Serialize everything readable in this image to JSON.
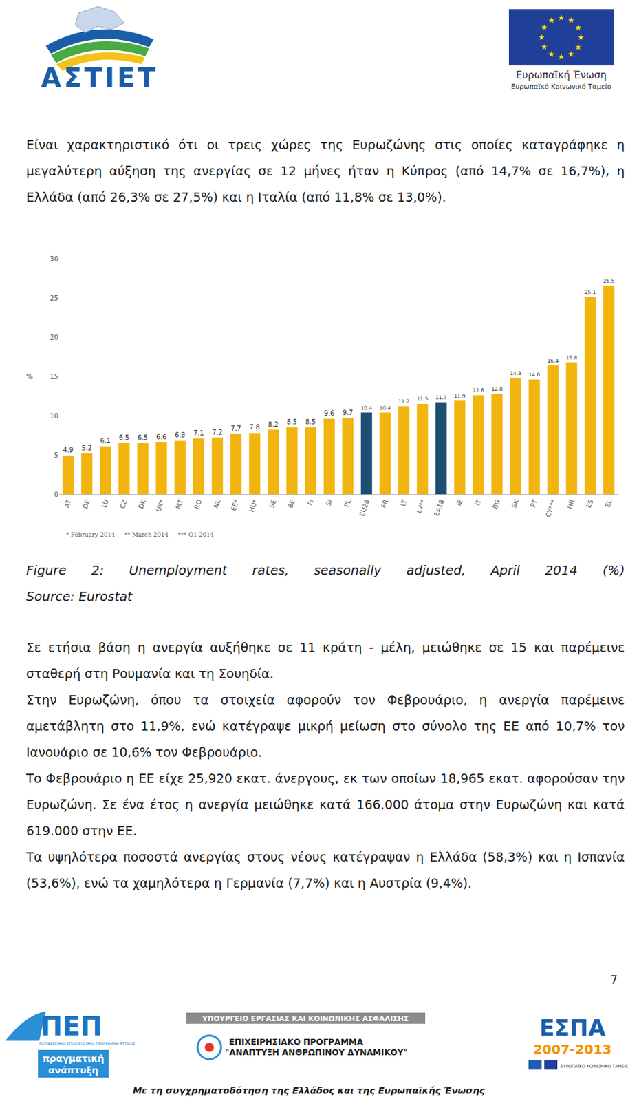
{
  "header": {
    "logo_left": "ΑΣΤΙΕΤ",
    "logo_right": [
      "Ευρωπαϊκή Ένωση",
      "Ευρωπαϊκό Κοινωνικό Ταμείο"
    ]
  },
  "paragraphs_top": [
    "Είναι χαρακτηριστικό ότι οι τρεις χώρες της Ευρωζώνης στις οποίες καταγράφηκε η μεγαλύτερη αύξηση της ανεργίας σε 12 μήνες ήταν η Κύπρος (από 14,7% σε 16,7%), η Ελλάδα (από 26,3% σε 27,5%) και η Ιταλία (από 11,8% σε 13,0%)."
  ],
  "chart_data": {
    "type": "bar",
    "ylabel": "%",
    "categories": [
      "AT",
      "DE",
      "LU",
      "CZ",
      "DK",
      "UK*",
      "MT",
      "RO",
      "NL",
      "EE*",
      "HU*",
      "SE",
      "BE",
      "FI",
      "SI",
      "PL",
      "EU28",
      "FR",
      "LT",
      "LV**",
      "EA18",
      "IE",
      "IT",
      "BG",
      "SK",
      "PT",
      "CY***",
      "HR",
      "ES",
      "EL"
    ],
    "values": [
      4.9,
      5.2,
      6.1,
      6.5,
      6.5,
      6.6,
      6.8,
      7.1,
      7.2,
      7.7,
      7.8,
      8.2,
      8.5,
      8.5,
      9.6,
      9.7,
      10.4,
      10.4,
      11.2,
      11.5,
      11.7,
      11.9,
      12.6,
      12.8,
      14.8,
      14.6,
      16.4,
      16.8,
      25.1,
      26.5
    ],
    "colors": [
      "#f2b50f",
      "#f2b50f",
      "#f2b50f",
      "#f2b50f",
      "#f2b50f",
      "#f2b50f",
      "#f2b50f",
      "#f2b50f",
      "#f2b50f",
      "#f2b50f",
      "#f2b50f",
      "#f2b50f",
      "#f2b50f",
      "#f2b50f",
      "#f2b50f",
      "#f2b50f",
      "#1d4f73",
      "#f2b50f",
      "#f2b50f",
      "#f2b50f",
      "#1d4f73",
      "#f2b50f",
      "#f2b50f",
      "#f2b50f",
      "#f2b50f",
      "#f2b50f",
      "#f2b50f",
      "#f2b50f",
      "#f2b50f",
      "#f2b50f"
    ],
    "ylim": [
      0,
      30
    ],
    "yticks": [
      0,
      5,
      10,
      15,
      20,
      25,
      30
    ],
    "grid": false,
    "data_labels": true,
    "annotations": [
      "* February 2014",
      "** March 2014",
      "*** Q1 2014"
    ]
  },
  "figure_caption": "Figure 2: Unemployment rates, seasonally adjusted, April 2014 (%)",
  "source": "Source: Eurostat",
  "paragraphs": [
    "Σε ετήσια βάση η ανεργία αυξήθηκε σε 11 κράτη - μέλη, μειώθηκε σε 15 και παρέμεινε σταθερή στη Ρουμανία και τη Σουηδία.",
    "Στην Ευρωζώνη, όπου τα στοιχεία αφορούν τον Φεβρουάριο, η ανεργία παρέμεινε αμετάβλητη στο 11,9%, ενώ κατέγραψε μικρή μείωση στο σύνολο της ΕΕ από 10,7% τον Ιανουάριο σε 10,6% τον Φεβρουάριο.",
    "Το Φεβρουάριο η ΕΕ είχε 25,920 εκατ. άνεργους, εκ των οποίων 18,965 εκατ. αφορούσαν την Ευρωζώνη. Σε ένα έτος η ανεργία μειώθηκε κατά 166.000 άτομα στην Ευρωζώνη και κατά 619.000 στην ΕΕ.",
    "Τα υψηλότερα ποσοστά ανεργίας στους νέους κατέγραψαν η Ελλάδα (58,3%) και η Ισπανία (53,6%), ενώ τα χαμηλότερα η Γερμανία (7,7%) και η Αυστρία (9,4%)."
  ],
  "page_number": "7",
  "footer": {
    "pep_logo": [
      "ΠΕΠ",
      "ΠΕΡΙΦΕΡΕΙΑΚΟ ΕΠΙΧΕΙΡΗΣΙΑΚΟ ΠΡΟΓΡΑΜΜΑ ΑΤΤΙΚΗΣ",
      "πραγματική",
      "ανάπτυξη"
    ],
    "ministry": "ΥΠΟΥΡΓΕΙΟ ΕΡΓΑΣΙΑΣ ΚΑΙ ΚΟΙΝΩΝΙΚΗΣ ΑΣΦΑΛΙΣΗΣ",
    "programme": [
      "ΕΠΙΧΕΙΡΗΣΙΑΚΟ ΠΡΟΓΡΑΜΜΑ",
      "\"ΑΝΑΠΤΥΞΗ ΑΝΘΡΩΠΙΝΟΥ ΔΥΝΑΜΙΚΟΥ\""
    ],
    "espa_logo": [
      "ΕΣΠΑ",
      "2007-2013",
      "ΕΥΡΩΠΑΪΚΟ ΚΟΙΝΩΝΙΚΟ ΤΑΜΕΙΟ"
    ],
    "cofinancing": "Με τη συγχρηματοδότηση της Ελλάδος και της Ευρωπαϊκής Ένωσης"
  }
}
